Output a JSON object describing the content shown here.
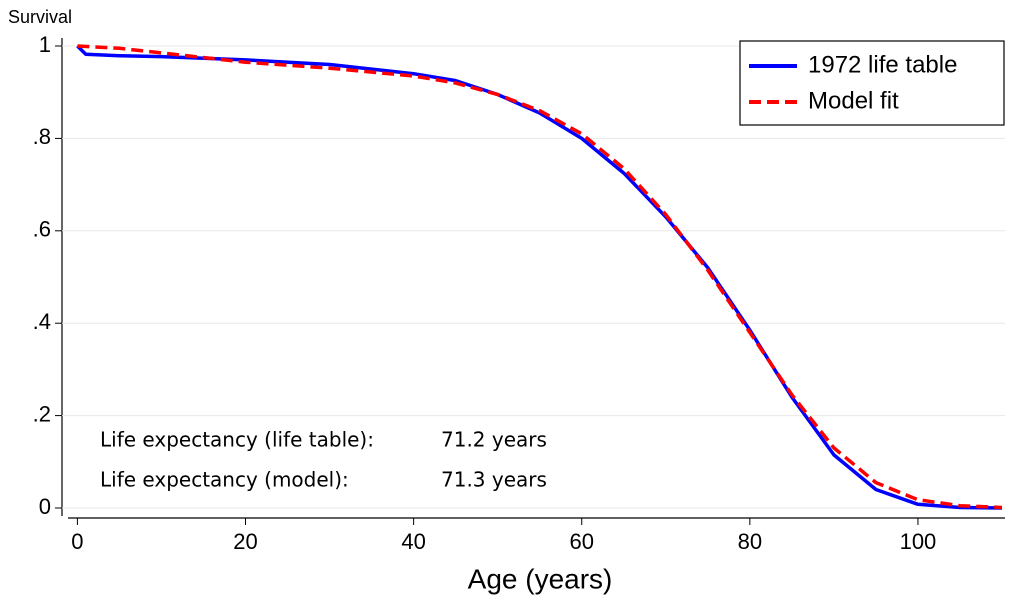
{
  "chart_data": {
    "type": "line",
    "y_label": "Survival",
    "x_label": "Age (years)",
    "xlim": [
      -1,
      110
    ],
    "xticks": [
      0,
      20,
      40,
      60,
      80,
      100
    ],
    "ylim": [
      0,
      1
    ],
    "yticks": [
      0,
      {
        "value": 0.2,
        "label": ".2"
      },
      {
        "value": 0.4,
        "label": ".4"
      },
      {
        "value": 0.6,
        "label": ".6"
      },
      {
        "value": 0.8,
        "label": ".8"
      },
      1
    ],
    "grid": true,
    "legend": "top-right",
    "series": [
      {
        "name": "1972 life table",
        "color": "#0000ff",
        "dash": false,
        "x": [
          0,
          1,
          5,
          10,
          20,
          30,
          40,
          45,
          50,
          55,
          60,
          65,
          70,
          75,
          80,
          85,
          90,
          95,
          100,
          105,
          110
        ],
        "values": [
          1,
          0.982,
          0.979,
          0.977,
          0.97,
          0.96,
          0.94,
          0.925,
          0.895,
          0.855,
          0.8,
          0.725,
          0.63,
          0.52,
          0.385,
          0.24,
          0.115,
          0.04,
          0.008,
          0.001,
          0
        ]
      },
      {
        "name": "Model fit",
        "color": "#ff0000",
        "dash": true,
        "x": [
          0,
          5,
          10,
          20,
          30,
          40,
          45,
          50,
          55,
          60,
          65,
          70,
          75,
          80,
          85,
          90,
          95,
          100,
          105,
          110
        ],
        "values": [
          1,
          0.995,
          0.985,
          0.965,
          0.952,
          0.935,
          0.92,
          0.895,
          0.86,
          0.81,
          0.735,
          0.635,
          0.515,
          0.38,
          0.245,
          0.13,
          0.055,
          0.018,
          0.005,
          0.001
        ]
      }
    ],
    "annotations": [
      {
        "label": "Life expectancy (life table):",
        "value_text": "71.2 years"
      },
      {
        "label": "Life expectancy (model):",
        "value_text": "71.3 years"
      }
    ]
  }
}
